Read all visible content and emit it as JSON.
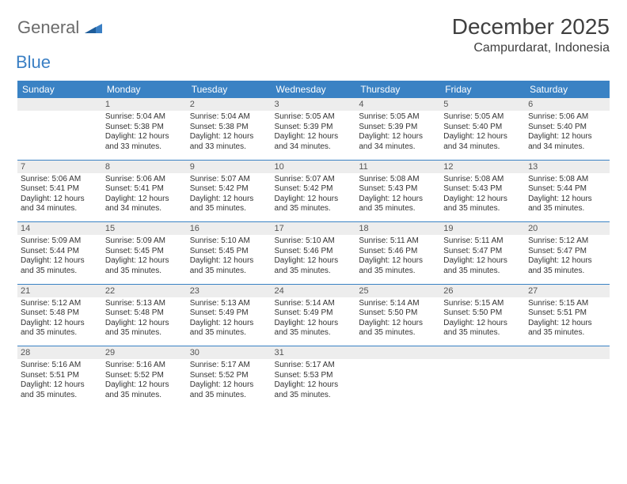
{
  "logo": {
    "text1": "General",
    "text2": "Blue"
  },
  "title": "December 2025",
  "location": "Campurdarat, Indonesia",
  "colors": {
    "header_bg": "#3a82c4",
    "header_text": "#ffffff",
    "daynum_bg": "#ededed",
    "border": "#3a82c4",
    "logo_gray": "#6b6b6b",
    "logo_blue": "#3a7fc4"
  },
  "weekdays": [
    "Sunday",
    "Monday",
    "Tuesday",
    "Wednesday",
    "Thursday",
    "Friday",
    "Saturday"
  ],
  "weeks": [
    {
      "nums": [
        "",
        "1",
        "2",
        "3",
        "4",
        "5",
        "6"
      ],
      "cells": [
        null,
        {
          "sunrise": "Sunrise: 5:04 AM",
          "sunset": "Sunset: 5:38 PM",
          "day1": "Daylight: 12 hours",
          "day2": "and 33 minutes."
        },
        {
          "sunrise": "Sunrise: 5:04 AM",
          "sunset": "Sunset: 5:38 PM",
          "day1": "Daylight: 12 hours",
          "day2": "and 33 minutes."
        },
        {
          "sunrise": "Sunrise: 5:05 AM",
          "sunset": "Sunset: 5:39 PM",
          "day1": "Daylight: 12 hours",
          "day2": "and 34 minutes."
        },
        {
          "sunrise": "Sunrise: 5:05 AM",
          "sunset": "Sunset: 5:39 PM",
          "day1": "Daylight: 12 hours",
          "day2": "and 34 minutes."
        },
        {
          "sunrise": "Sunrise: 5:05 AM",
          "sunset": "Sunset: 5:40 PM",
          "day1": "Daylight: 12 hours",
          "day2": "and 34 minutes."
        },
        {
          "sunrise": "Sunrise: 5:06 AM",
          "sunset": "Sunset: 5:40 PM",
          "day1": "Daylight: 12 hours",
          "day2": "and 34 minutes."
        }
      ]
    },
    {
      "nums": [
        "7",
        "8",
        "9",
        "10",
        "11",
        "12",
        "13"
      ],
      "cells": [
        {
          "sunrise": "Sunrise: 5:06 AM",
          "sunset": "Sunset: 5:41 PM",
          "day1": "Daylight: 12 hours",
          "day2": "and 34 minutes."
        },
        {
          "sunrise": "Sunrise: 5:06 AM",
          "sunset": "Sunset: 5:41 PM",
          "day1": "Daylight: 12 hours",
          "day2": "and 34 minutes."
        },
        {
          "sunrise": "Sunrise: 5:07 AM",
          "sunset": "Sunset: 5:42 PM",
          "day1": "Daylight: 12 hours",
          "day2": "and 35 minutes."
        },
        {
          "sunrise": "Sunrise: 5:07 AM",
          "sunset": "Sunset: 5:42 PM",
          "day1": "Daylight: 12 hours",
          "day2": "and 35 minutes."
        },
        {
          "sunrise": "Sunrise: 5:08 AM",
          "sunset": "Sunset: 5:43 PM",
          "day1": "Daylight: 12 hours",
          "day2": "and 35 minutes."
        },
        {
          "sunrise": "Sunrise: 5:08 AM",
          "sunset": "Sunset: 5:43 PM",
          "day1": "Daylight: 12 hours",
          "day2": "and 35 minutes."
        },
        {
          "sunrise": "Sunrise: 5:08 AM",
          "sunset": "Sunset: 5:44 PM",
          "day1": "Daylight: 12 hours",
          "day2": "and 35 minutes."
        }
      ]
    },
    {
      "nums": [
        "14",
        "15",
        "16",
        "17",
        "18",
        "19",
        "20"
      ],
      "cells": [
        {
          "sunrise": "Sunrise: 5:09 AM",
          "sunset": "Sunset: 5:44 PM",
          "day1": "Daylight: 12 hours",
          "day2": "and 35 minutes."
        },
        {
          "sunrise": "Sunrise: 5:09 AM",
          "sunset": "Sunset: 5:45 PM",
          "day1": "Daylight: 12 hours",
          "day2": "and 35 minutes."
        },
        {
          "sunrise": "Sunrise: 5:10 AM",
          "sunset": "Sunset: 5:45 PM",
          "day1": "Daylight: 12 hours",
          "day2": "and 35 minutes."
        },
        {
          "sunrise": "Sunrise: 5:10 AM",
          "sunset": "Sunset: 5:46 PM",
          "day1": "Daylight: 12 hours",
          "day2": "and 35 minutes."
        },
        {
          "sunrise": "Sunrise: 5:11 AM",
          "sunset": "Sunset: 5:46 PM",
          "day1": "Daylight: 12 hours",
          "day2": "and 35 minutes."
        },
        {
          "sunrise": "Sunrise: 5:11 AM",
          "sunset": "Sunset: 5:47 PM",
          "day1": "Daylight: 12 hours",
          "day2": "and 35 minutes."
        },
        {
          "sunrise": "Sunrise: 5:12 AM",
          "sunset": "Sunset: 5:47 PM",
          "day1": "Daylight: 12 hours",
          "day2": "and 35 minutes."
        }
      ]
    },
    {
      "nums": [
        "21",
        "22",
        "23",
        "24",
        "25",
        "26",
        "27"
      ],
      "cells": [
        {
          "sunrise": "Sunrise: 5:12 AM",
          "sunset": "Sunset: 5:48 PM",
          "day1": "Daylight: 12 hours",
          "day2": "and 35 minutes."
        },
        {
          "sunrise": "Sunrise: 5:13 AM",
          "sunset": "Sunset: 5:48 PM",
          "day1": "Daylight: 12 hours",
          "day2": "and 35 minutes."
        },
        {
          "sunrise": "Sunrise: 5:13 AM",
          "sunset": "Sunset: 5:49 PM",
          "day1": "Daylight: 12 hours",
          "day2": "and 35 minutes."
        },
        {
          "sunrise": "Sunrise: 5:14 AM",
          "sunset": "Sunset: 5:49 PM",
          "day1": "Daylight: 12 hours",
          "day2": "and 35 minutes."
        },
        {
          "sunrise": "Sunrise: 5:14 AM",
          "sunset": "Sunset: 5:50 PM",
          "day1": "Daylight: 12 hours",
          "day2": "and 35 minutes."
        },
        {
          "sunrise": "Sunrise: 5:15 AM",
          "sunset": "Sunset: 5:50 PM",
          "day1": "Daylight: 12 hours",
          "day2": "and 35 minutes."
        },
        {
          "sunrise": "Sunrise: 5:15 AM",
          "sunset": "Sunset: 5:51 PM",
          "day1": "Daylight: 12 hours",
          "day2": "and 35 minutes."
        }
      ]
    },
    {
      "nums": [
        "28",
        "29",
        "30",
        "31",
        "",
        "",
        ""
      ],
      "cells": [
        {
          "sunrise": "Sunrise: 5:16 AM",
          "sunset": "Sunset: 5:51 PM",
          "day1": "Daylight: 12 hours",
          "day2": "and 35 minutes."
        },
        {
          "sunrise": "Sunrise: 5:16 AM",
          "sunset": "Sunset: 5:52 PM",
          "day1": "Daylight: 12 hours",
          "day2": "and 35 minutes."
        },
        {
          "sunrise": "Sunrise: 5:17 AM",
          "sunset": "Sunset: 5:52 PM",
          "day1": "Daylight: 12 hours",
          "day2": "and 35 minutes."
        },
        {
          "sunrise": "Sunrise: 5:17 AM",
          "sunset": "Sunset: 5:53 PM",
          "day1": "Daylight: 12 hours",
          "day2": "and 35 minutes."
        },
        null,
        null,
        null
      ]
    }
  ]
}
